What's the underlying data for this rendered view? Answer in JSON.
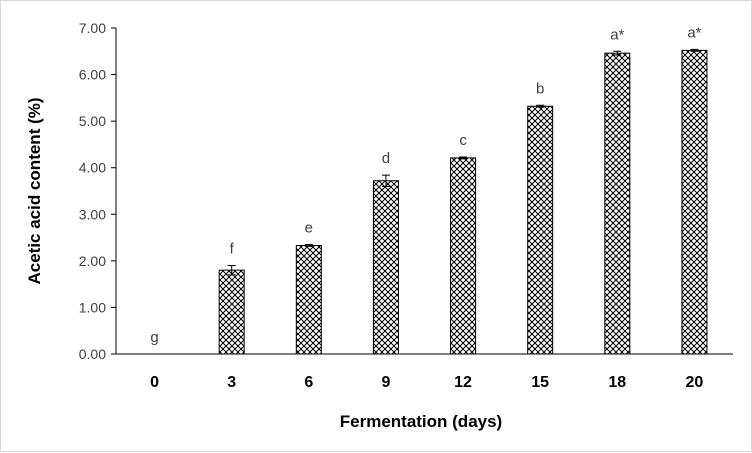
{
  "chart_data": {
    "type": "bar",
    "xlabel": "Fermentation (days)",
    "ylabel": "Acetic acid content (%)",
    "categories": [
      "0",
      "3",
      "6",
      "9",
      "12",
      "15",
      "18",
      "20"
    ],
    "values": [
      0,
      1.8,
      2.33,
      3.72,
      4.21,
      5.32,
      6.46,
      6.52
    ],
    "errors": [
      0,
      0.1,
      0.02,
      0.12,
      0.02,
      0.02,
      0.04,
      0.02
    ],
    "significance_labels": [
      "g",
      "f",
      "e",
      "d",
      "c",
      "b",
      "a*",
      "a*"
    ],
    "ylim": [
      0,
      7
    ],
    "yticks": [
      "0.00",
      "1.00",
      "2.00",
      "3.00",
      "4.00",
      "5.00",
      "6.00",
      "7.00"
    ],
    "grid": false,
    "legend": "none",
    "bar_pattern": "crosshatch",
    "colors": {
      "bar_stroke": "#000000",
      "hatch": "#000000",
      "axis": "#000000",
      "tick_text": "#404040"
    }
  }
}
